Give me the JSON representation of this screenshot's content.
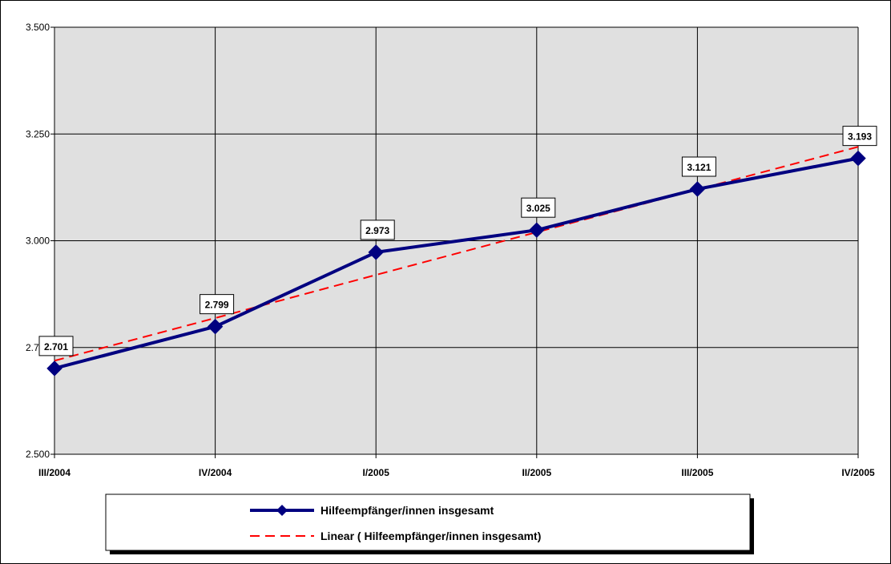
{
  "chart_data": {
    "type": "line",
    "categories": [
      "III/2004",
      "IV/2004",
      "I/2005",
      "II/2005",
      "III/2005",
      "IV/2005"
    ],
    "series": [
      {
        "name": "Hilfeempfänger/innen insgesamt",
        "values": [
          2701,
          2799,
          2973,
          3025,
          3121,
          3193
        ],
        "data_labels": [
          "2.701",
          "2.799",
          "2.973",
          "3.025",
          "3.121",
          "3.193"
        ],
        "color": "#000080"
      },
      {
        "name": "Linear ( Hilfeempfänger/innen insgesamt)",
        "kind": "linear-trendline",
        "values": [
          2719,
          2819,
          2920,
          3020,
          3120,
          3220
        ],
        "color": "#ff0000"
      }
    ],
    "ylim": [
      2500,
      3500
    ],
    "y_ticks": [
      {
        "value": 2500,
        "label": "2.500"
      },
      {
        "value": 2750,
        "label": "2.750"
      },
      {
        "value": 3000,
        "label": "3.000"
      },
      {
        "value": 3250,
        "label": "3.250"
      },
      {
        "value": 3500,
        "label": "3.500"
      }
    ],
    "grid": true,
    "plot_background": "#e0e0e0",
    "legend_position": "bottom",
    "title": "",
    "xlabel": "",
    "ylabel": ""
  }
}
